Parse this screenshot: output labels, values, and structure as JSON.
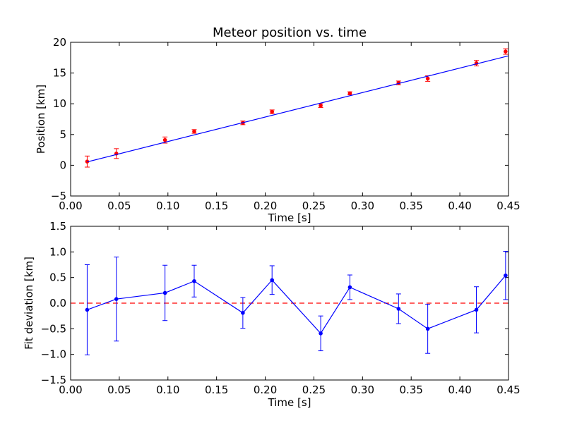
{
  "chart_data": [
    {
      "type": "scatter",
      "title": "Meteor position vs. time",
      "xlabel": "Time [s]",
      "ylabel": "Position [km]",
      "xlim": [
        0.0,
        0.45
      ],
      "ylim": [
        -5,
        20
      ],
      "xticks": [
        0.0,
        0.05,
        0.1,
        0.15,
        0.2,
        0.25,
        0.3,
        0.35,
        0.4,
        0.45
      ],
      "xtick_labels": [
        "0.00",
        "0.05",
        "0.10",
        "0.15",
        "0.20",
        "0.25",
        "0.30",
        "0.35",
        "0.40",
        "0.45"
      ],
      "yticks": [
        -5,
        0,
        5,
        10,
        15,
        20
      ],
      "ytick_labels": [
        "−5",
        "0",
        "5",
        "10",
        "15",
        "20"
      ],
      "grid": false,
      "series": [
        {
          "kind": "errorbar-points",
          "color": "#ff0000",
          "x": [
            0.017,
            0.047,
            0.097,
            0.127,
            0.177,
            0.207,
            0.257,
            0.287,
            0.337,
            0.367,
            0.417,
            0.447
          ],
          "y": [
            0.6,
            1.9,
            4.1,
            5.5,
            6.9,
            8.7,
            9.7,
            11.7,
            13.4,
            14.1,
            16.6,
            18.5
          ],
          "yerr": [
            0.9,
            0.8,
            0.5,
            0.3,
            0.3,
            0.3,
            0.3,
            0.25,
            0.3,
            0.45,
            0.45,
            0.45
          ]
        },
        {
          "kind": "fit-line",
          "color": "#0000ff",
          "x": [
            0.017,
            0.45
          ],
          "y": [
            0.55,
            17.8
          ]
        }
      ]
    },
    {
      "type": "line",
      "title": "",
      "xlabel": "Time [s]",
      "ylabel": "Fit deviation [km]",
      "xlim": [
        0.0,
        0.45
      ],
      "ylim": [
        -1.5,
        1.5
      ],
      "xticks": [
        0.0,
        0.05,
        0.1,
        0.15,
        0.2,
        0.25,
        0.3,
        0.35,
        0.4,
        0.45
      ],
      "xtick_labels": [
        "0.00",
        "0.05",
        "0.10",
        "0.15",
        "0.20",
        "0.25",
        "0.30",
        "0.35",
        "0.40",
        "0.45"
      ],
      "yticks": [
        -1.5,
        -1.0,
        -0.5,
        0.0,
        0.5,
        1.0,
        1.5
      ],
      "ytick_labels": [
        "−1.5",
        "−1.0",
        "−0.5",
        "0.0",
        "0.5",
        "1.0",
        "1.5"
      ],
      "grid": false,
      "zero_line_color": "#ff0000",
      "series": [
        {
          "kind": "errorbar-line",
          "color": "#0000ff",
          "x": [
            0.017,
            0.047,
            0.097,
            0.127,
            0.177,
            0.207,
            0.257,
            0.287,
            0.337,
            0.367,
            0.417,
            0.447
          ],
          "y": [
            -0.13,
            0.08,
            0.2,
            0.43,
            -0.19,
            0.45,
            -0.59,
            0.31,
            -0.11,
            -0.5,
            -0.13,
            0.54
          ],
          "yerr": [
            0.88,
            0.82,
            0.54,
            0.31,
            0.3,
            0.28,
            0.34,
            0.24,
            0.29,
            0.48,
            0.45,
            0.47
          ]
        }
      ]
    }
  ]
}
